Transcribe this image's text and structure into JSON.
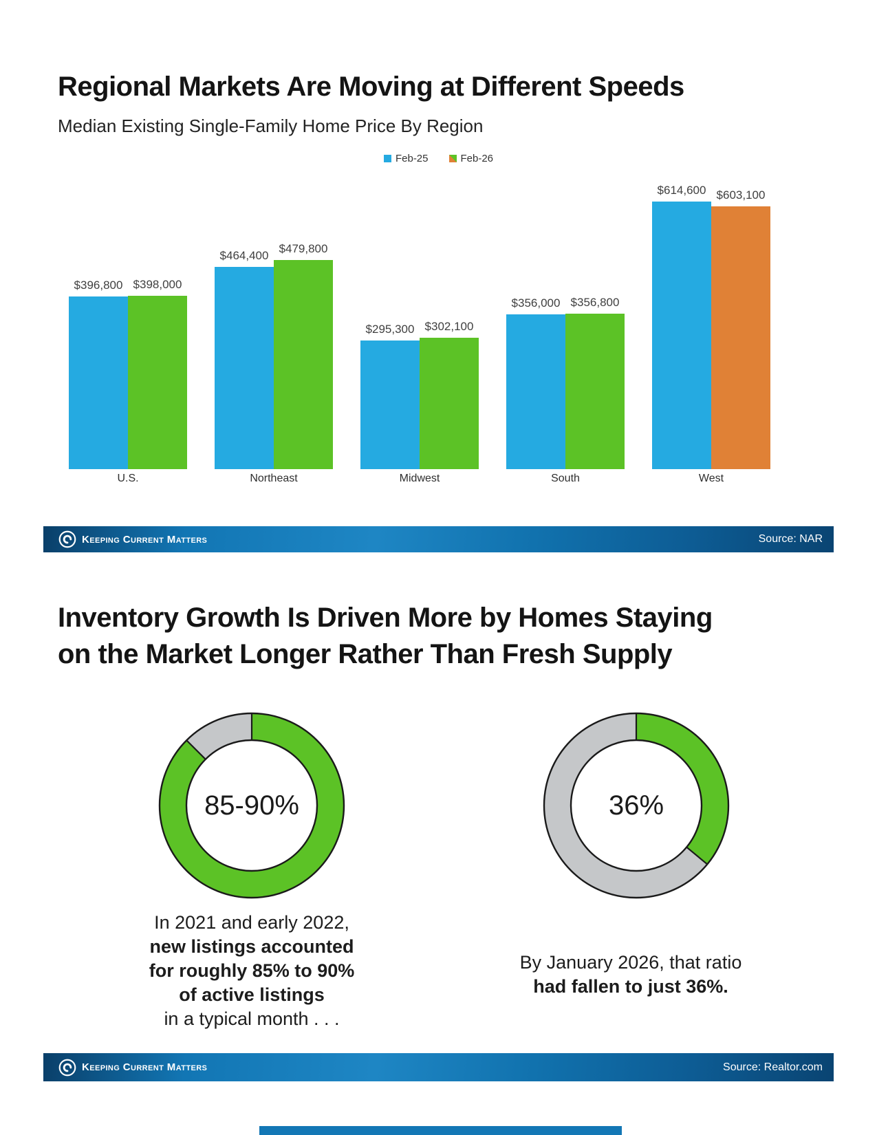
{
  "chart_data": [
    {
      "type": "bar",
      "title": "Regional Markets Are Moving at Different Speeds",
      "subtitle": "Median Existing Single-Family Home Price By Region",
      "categories": [
        "U.S.",
        "Northeast",
        "Midwest",
        "South",
        "West"
      ],
      "series": [
        {
          "name": "Feb-25",
          "color": "#25aae1",
          "values": [
            396800,
            464400,
            295300,
            356000,
            614600
          ],
          "value_labels": [
            "$396,800",
            "$464,400",
            "$295,300",
            "$356,000",
            "$614,600"
          ]
        },
        {
          "name": "Feb-26",
          "color": "#5cc226",
          "bar_color_overrides": {
            "West": "#e08136"
          },
          "values": [
            398000,
            479800,
            302100,
            356800,
            603100
          ],
          "value_labels": [
            "$398,000",
            "$479,800",
            "$302,100",
            "$356,800",
            "$603,100"
          ]
        }
      ],
      "ylim": [
        0,
        680000
      ],
      "grid": false,
      "legend_position": "top-center",
      "legend": [
        {
          "label": "Feb-25",
          "colors": [
            "#25aae1"
          ]
        },
        {
          "label": "Feb-26",
          "colors": [
            "#e08136",
            "#5cc226"
          ]
        }
      ],
      "value_labels_shown": true,
      "source": "Source: NAR"
    },
    {
      "type": "pie",
      "style": "donut",
      "center_label": "85-90%",
      "slices": [
        {
          "name": "new-listings-share-of-active-listings",
          "value": 87.5,
          "color": "#5cc226"
        },
        {
          "name": "remainder",
          "value": 12.5,
          "color": "#c5c7c9"
        }
      ],
      "caption_lines": [
        {
          "text": "In 2021 and early 2022,",
          "bold": false
        },
        {
          "text": "new listings accounted",
          "bold": true
        },
        {
          "text": "for roughly 85% to 90%",
          "bold": true
        },
        {
          "text": "of active listings",
          "bold": true
        },
        {
          "text": "in a typical month . . .",
          "bold": false
        }
      ]
    },
    {
      "type": "pie",
      "style": "donut",
      "center_label": "36%",
      "slices": [
        {
          "name": "new-listings-share-of-active-listings",
          "value": 36,
          "color": "#5cc226"
        },
        {
          "name": "remainder",
          "value": 64,
          "color": "#c5c7c9"
        }
      ],
      "caption_lines": [
        {
          "text": "By January 2026, that ratio",
          "bold": false
        },
        {
          "text": "had fallen to just 36%.",
          "bold": true
        }
      ]
    }
  ],
  "section2": {
    "title": "Inventory Growth Is Driven More by Homes Staying\non the Market Longer Rather Than Fresh Supply",
    "source": "Source: Realtor.com"
  },
  "footer": {
    "brand": "Keeping Current Matters"
  }
}
